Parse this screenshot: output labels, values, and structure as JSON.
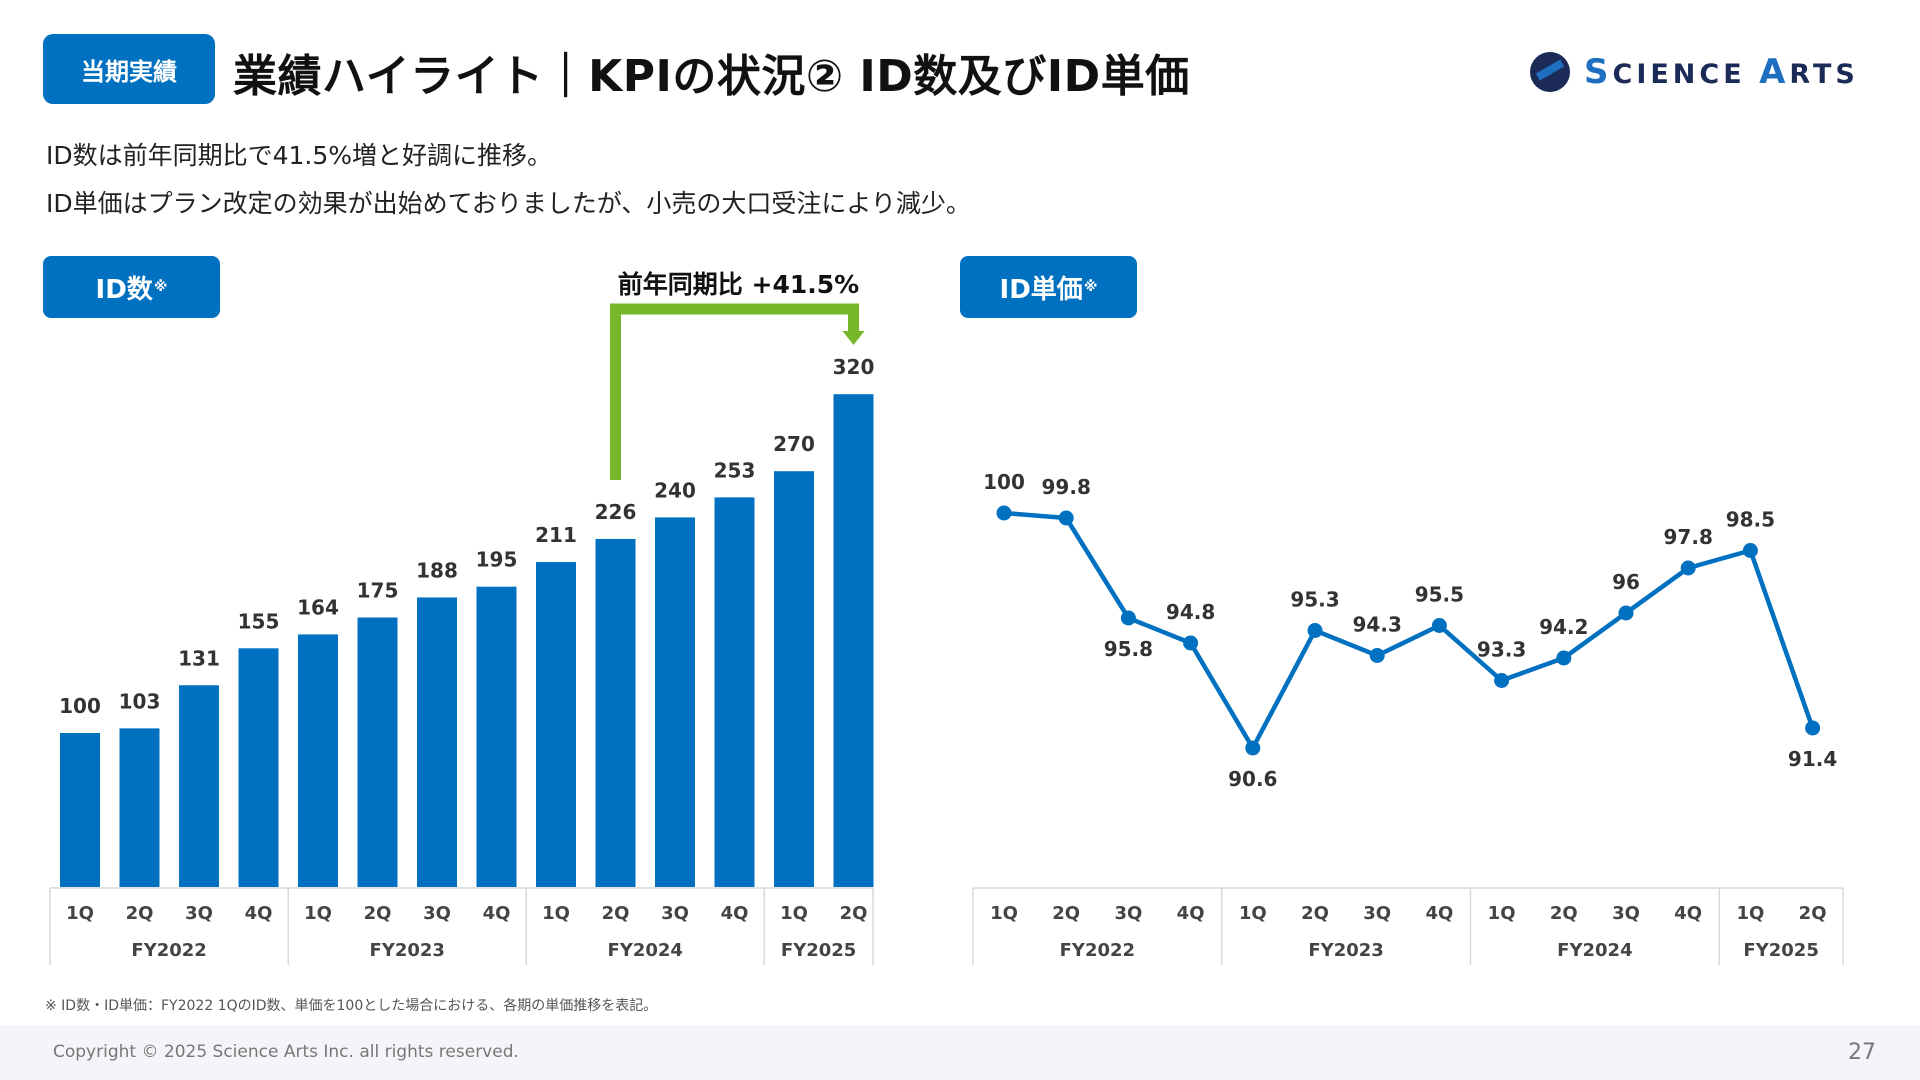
{
  "header": {
    "tag": "当期実績",
    "title": "業績ハイライト｜KPIの状況② ID数及びID単価",
    "logo_initial_s": "S",
    "logo_rest_1": "CIENCE ",
    "logo_initial_a": "A",
    "logo_rest_2": "RTS"
  },
  "description": [
    "ID数は前年同期比で41.5%増と好調に推移。",
    "ID単価はプラン改定の効果が出始めておりましたが、小売の大口受注により減少。"
  ],
  "chips": {
    "left": "ID数",
    "right": "ID単価",
    "mark": "※"
  },
  "annotation": {
    "label": "前年同期比 +41.5%"
  },
  "footnote": "※ ID数・ID単価：FY2022 1QのID数、単価を100とした場合における、各期の単価推移を表記。",
  "footer": {
    "copyright": "Copyright © 2025 Science Arts Inc. all rights reserved.",
    "page": "27"
  },
  "colors": {
    "accent": "#0070C0",
    "annotation": "#76B82A",
    "axis": "#d9d9d9"
  },
  "chart_data": [
    {
      "type": "bar",
      "title": "ID数",
      "categories": [
        "1Q",
        "2Q",
        "3Q",
        "4Q",
        "1Q",
        "2Q",
        "3Q",
        "4Q",
        "1Q",
        "2Q",
        "3Q",
        "4Q",
        "1Q",
        "2Q"
      ],
      "groups": [
        {
          "label": "FY2022",
          "count": 4
        },
        {
          "label": "FY2023",
          "count": 4
        },
        {
          "label": "FY2024",
          "count": 4
        },
        {
          "label": "FY2025",
          "count": 2
        }
      ],
      "values": [
        100,
        103,
        131,
        155,
        164,
        175,
        188,
        195,
        211,
        226,
        240,
        253,
        270,
        320
      ],
      "value_labels": [
        "100",
        "103",
        "131",
        "155",
        "164",
        "175",
        "188",
        "195",
        "211",
        "226",
        "240",
        "253",
        "270",
        "320"
      ],
      "ylim": [
        0,
        330
      ],
      "grid": false,
      "annotation": {
        "from_index": 9,
        "to_index": 13,
        "text": "前年同期比 +41.5%"
      }
    },
    {
      "type": "line",
      "title": "ID単価",
      "categories": [
        "1Q",
        "2Q",
        "3Q",
        "4Q",
        "1Q",
        "2Q",
        "3Q",
        "4Q",
        "1Q",
        "2Q",
        "3Q",
        "4Q",
        "1Q",
        "2Q"
      ],
      "groups": [
        {
          "label": "FY2022",
          "count": 4
        },
        {
          "label": "FY2023",
          "count": 4
        },
        {
          "label": "FY2024",
          "count": 4
        },
        {
          "label": "FY2025",
          "count": 2
        }
      ],
      "values": [
        100,
        99.8,
        95.8,
        94.8,
        90.6,
        95.3,
        94.3,
        95.5,
        93.3,
        94.2,
        96,
        97.8,
        98.5,
        91.4
      ],
      "value_labels": [
        "100",
        "99.8",
        "95.8",
        "94.8",
        "90.6",
        "95.3",
        "94.3",
        "95.5",
        "93.3",
        "94.2",
        "96",
        "97.8",
        "98.5",
        "91.4"
      ],
      "label_positions": [
        "above",
        "above",
        "below",
        "above",
        "below",
        "above",
        "above",
        "above",
        "above",
        "above",
        "above",
        "above",
        "above",
        "below"
      ],
      "grid": false
    }
  ]
}
